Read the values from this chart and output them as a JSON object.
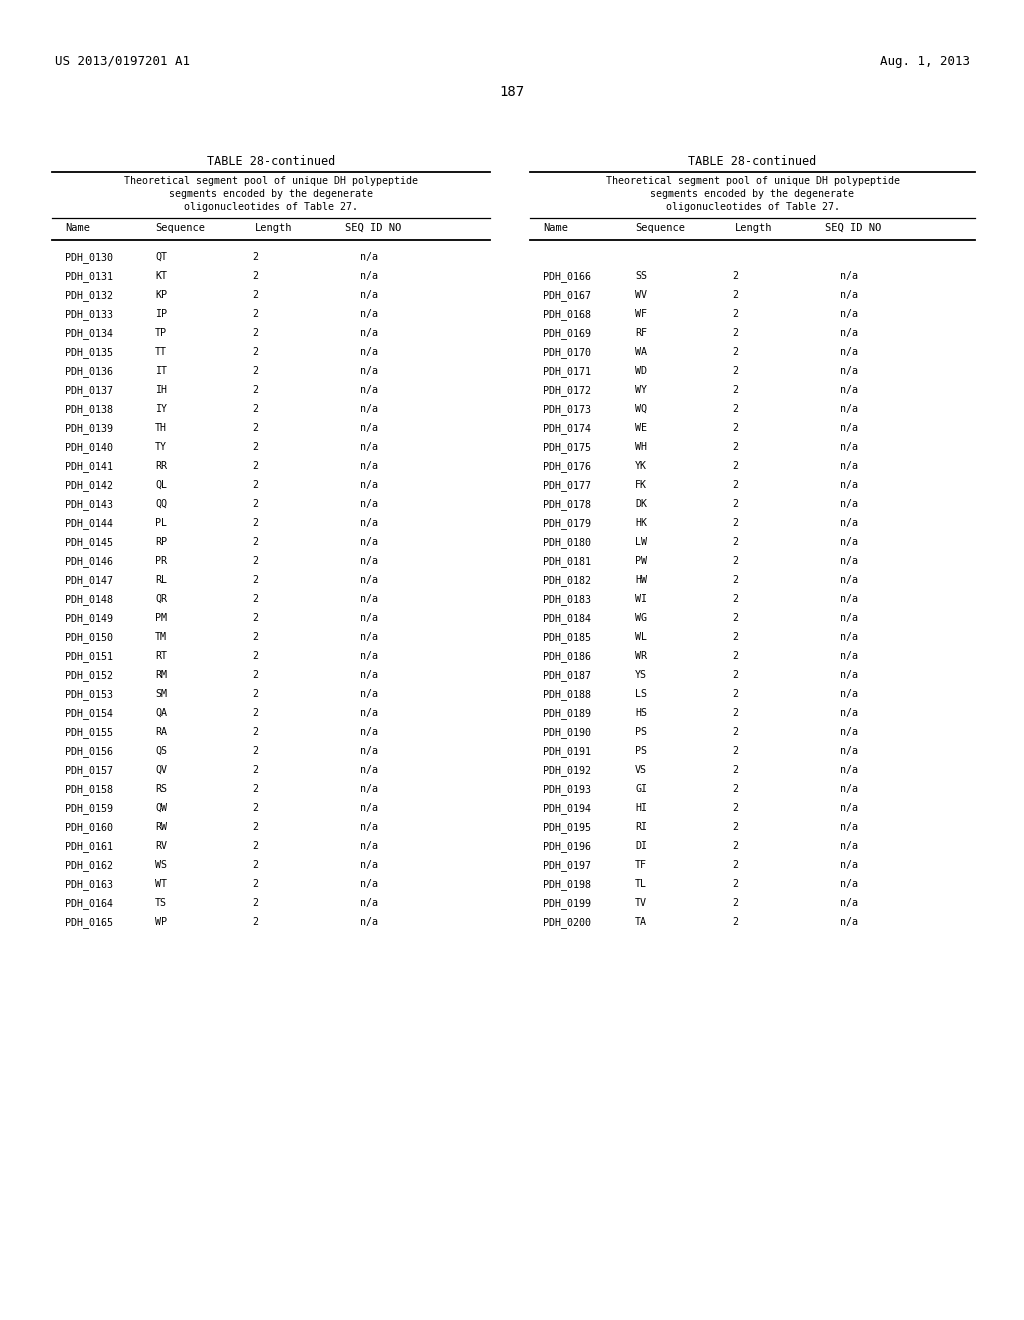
{
  "page_number": "187",
  "patent_left": "US 2013/0197201 A1",
  "patent_right": "Aug. 1, 2013",
  "table_title": "TABLE 28-continued",
  "table_subtitle_lines": [
    "Theoretical segment pool of unique DH polypeptide",
    "segments encoded by the degenerate",
    "oligonucleotides of Table 27."
  ],
  "col_headers": [
    "Name",
    "Sequence",
    "Length",
    "SEQ ID NO"
  ],
  "left_data": [
    [
      "PDH_0130",
      "QT",
      "2",
      "n/a"
    ],
    [
      "PDH_0131",
      "KT",
      "2",
      "n/a"
    ],
    [
      "PDH_0132",
      "KP",
      "2",
      "n/a"
    ],
    [
      "PDH_0133",
      "IP",
      "2",
      "n/a"
    ],
    [
      "PDH_0134",
      "TP",
      "2",
      "n/a"
    ],
    [
      "PDH_0135",
      "TT",
      "2",
      "n/a"
    ],
    [
      "PDH_0136",
      "IT",
      "2",
      "n/a"
    ],
    [
      "PDH_0137",
      "IH",
      "2",
      "n/a"
    ],
    [
      "PDH_0138",
      "IY",
      "2",
      "n/a"
    ],
    [
      "PDH_0139",
      "TH",
      "2",
      "n/a"
    ],
    [
      "PDH_0140",
      "TY",
      "2",
      "n/a"
    ],
    [
      "PDH_0141",
      "RR",
      "2",
      "n/a"
    ],
    [
      "PDH_0142",
      "QL",
      "2",
      "n/a"
    ],
    [
      "PDH_0143",
      "QQ",
      "2",
      "n/a"
    ],
    [
      "PDH_0144",
      "PL",
      "2",
      "n/a"
    ],
    [
      "PDH_0145",
      "RP",
      "2",
      "n/a"
    ],
    [
      "PDH_0146",
      "PR",
      "2",
      "n/a"
    ],
    [
      "PDH_0147",
      "RL",
      "2",
      "n/a"
    ],
    [
      "PDH_0148",
      "QR",
      "2",
      "n/a"
    ],
    [
      "PDH_0149",
      "PM",
      "2",
      "n/a"
    ],
    [
      "PDH_0150",
      "TM",
      "2",
      "n/a"
    ],
    [
      "PDH_0151",
      "RT",
      "2",
      "n/a"
    ],
    [
      "PDH_0152",
      "RM",
      "2",
      "n/a"
    ],
    [
      "PDH_0153",
      "SM",
      "2",
      "n/a"
    ],
    [
      "PDH_0154",
      "QA",
      "2",
      "n/a"
    ],
    [
      "PDH_0155",
      "RA",
      "2",
      "n/a"
    ],
    [
      "PDH_0156",
      "QS",
      "2",
      "n/a"
    ],
    [
      "PDH_0157",
      "QV",
      "2",
      "n/a"
    ],
    [
      "PDH_0158",
      "RS",
      "2",
      "n/a"
    ],
    [
      "PDH_0159",
      "QW",
      "2",
      "n/a"
    ],
    [
      "PDH_0160",
      "RW",
      "2",
      "n/a"
    ],
    [
      "PDH_0161",
      "RV",
      "2",
      "n/a"
    ],
    [
      "PDH_0162",
      "WS",
      "2",
      "n/a"
    ],
    [
      "PDH_0163",
      "WT",
      "2",
      "n/a"
    ],
    [
      "PDH_0164",
      "TS",
      "2",
      "n/a"
    ],
    [
      "PDH_0165",
      "WP",
      "2",
      "n/a"
    ]
  ],
  "right_data": [
    [
      "PDH_0166",
      "SS",
      "2",
      "n/a"
    ],
    [
      "PDH_0167",
      "WV",
      "2",
      "n/a"
    ],
    [
      "PDH_0168",
      "WF",
      "2",
      "n/a"
    ],
    [
      "PDH_0169",
      "RF",
      "2",
      "n/a"
    ],
    [
      "PDH_0170",
      "WA",
      "2",
      "n/a"
    ],
    [
      "PDH_0171",
      "WD",
      "2",
      "n/a"
    ],
    [
      "PDH_0172",
      "WY",
      "2",
      "n/a"
    ],
    [
      "PDH_0173",
      "WQ",
      "2",
      "n/a"
    ],
    [
      "PDH_0174",
      "WE",
      "2",
      "n/a"
    ],
    [
      "PDH_0175",
      "WH",
      "2",
      "n/a"
    ],
    [
      "PDH_0176",
      "YK",
      "2",
      "n/a"
    ],
    [
      "PDH_0177",
      "FK",
      "2",
      "n/a"
    ],
    [
      "PDH_0178",
      "DK",
      "2",
      "n/a"
    ],
    [
      "PDH_0179",
      "HK",
      "2",
      "n/a"
    ],
    [
      "PDH_0180",
      "LW",
      "2",
      "n/a"
    ],
    [
      "PDH_0181",
      "PW",
      "2",
      "n/a"
    ],
    [
      "PDH_0182",
      "HW",
      "2",
      "n/a"
    ],
    [
      "PDH_0183",
      "WI",
      "2",
      "n/a"
    ],
    [
      "PDH_0184",
      "WG",
      "2",
      "n/a"
    ],
    [
      "PDH_0185",
      "WL",
      "2",
      "n/a"
    ],
    [
      "PDH_0186",
      "WR",
      "2",
      "n/a"
    ],
    [
      "PDH_0187",
      "YS",
      "2",
      "n/a"
    ],
    [
      "PDH_0188",
      "LS",
      "2",
      "n/a"
    ],
    [
      "PDH_0189",
      "HS",
      "2",
      "n/a"
    ],
    [
      "PDH_0190",
      "PS",
      "2",
      "n/a"
    ],
    [
      "PDH_0191",
      "PS",
      "2",
      "n/a"
    ],
    [
      "PDH_0192",
      "VS",
      "2",
      "n/a"
    ],
    [
      "PDH_0193",
      "GI",
      "2",
      "n/a"
    ],
    [
      "PDH_0194",
      "HI",
      "2",
      "n/a"
    ],
    [
      "PDH_0195",
      "RI",
      "2",
      "n/a"
    ],
    [
      "PDH_0196",
      "DI",
      "2",
      "n/a"
    ],
    [
      "PDH_0197",
      "TF",
      "2",
      "n/a"
    ],
    [
      "PDH_0198",
      "TL",
      "2",
      "n/a"
    ],
    [
      "PDH_0199",
      "TV",
      "2",
      "n/a"
    ],
    [
      "PDH_0200",
      "TA",
      "2",
      "n/a"
    ]
  ],
  "bg_color": "#ffffff",
  "text_color": "#000000"
}
